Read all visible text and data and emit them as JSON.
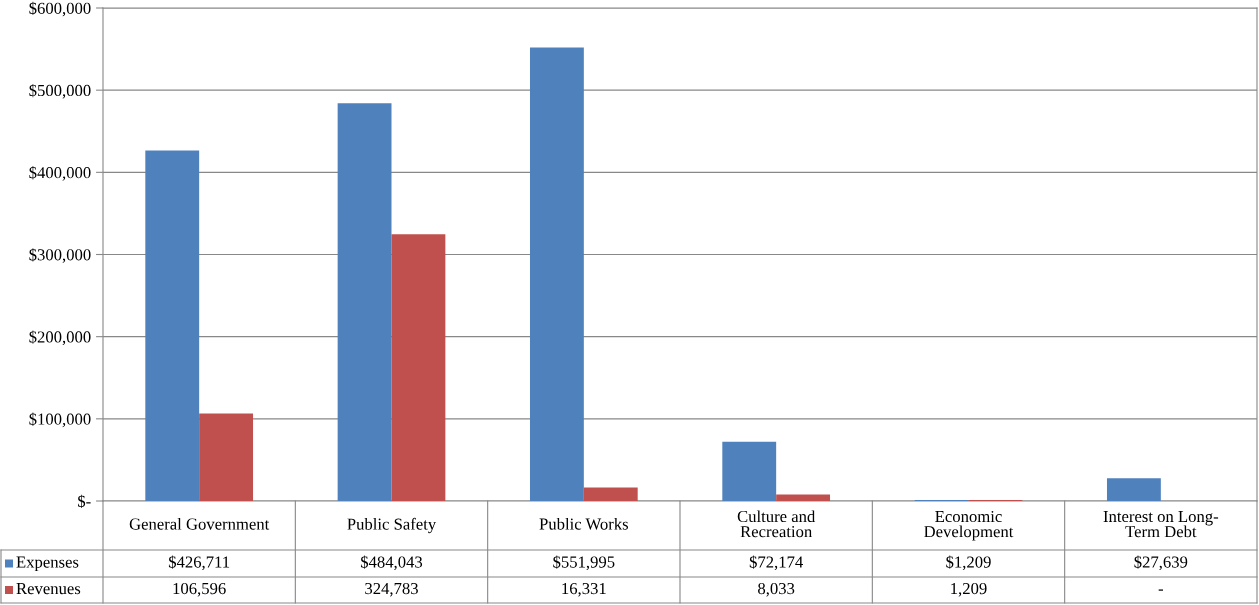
{
  "chart_data": {
    "type": "bar",
    "categories": [
      "General Government",
      "Public Safety",
      "Public Works",
      "Culture and\nRecreation",
      "Economic\nDevelopment",
      "Interest on Long-\nTerm Debt"
    ],
    "series": [
      {
        "name": "Expenses",
        "color": "#4f81bd",
        "values": [
          426711,
          484043,
          551995,
          72174,
          1209,
          27639
        ],
        "value_labels": [
          "$426,711",
          "$484,043",
          "$551,995",
          "$72,174",
          "$1,209",
          "$27,639"
        ]
      },
      {
        "name": "Revenues",
        "color": "#c0504d",
        "values": [
          106596,
          324783,
          16331,
          8033,
          1209,
          0
        ],
        "value_labels": [
          "106,596",
          "324,783",
          "16,331",
          "8,033",
          "1,209",
          "-"
        ]
      }
    ],
    "ylim": [
      0,
      600000
    ],
    "yticks": [
      {
        "value": 0,
        "label": "$-"
      },
      {
        "value": 100000,
        "label": "$100,000"
      },
      {
        "value": 200000,
        "label": "$200,000"
      },
      {
        "value": 300000,
        "label": "$300,000"
      },
      {
        "value": 400000,
        "label": "$400,000"
      },
      {
        "value": 500000,
        "label": "$500,000"
      },
      {
        "value": 600000,
        "label": "$600,000"
      }
    ],
    "grid": "y",
    "legend": "bottom left"
  }
}
